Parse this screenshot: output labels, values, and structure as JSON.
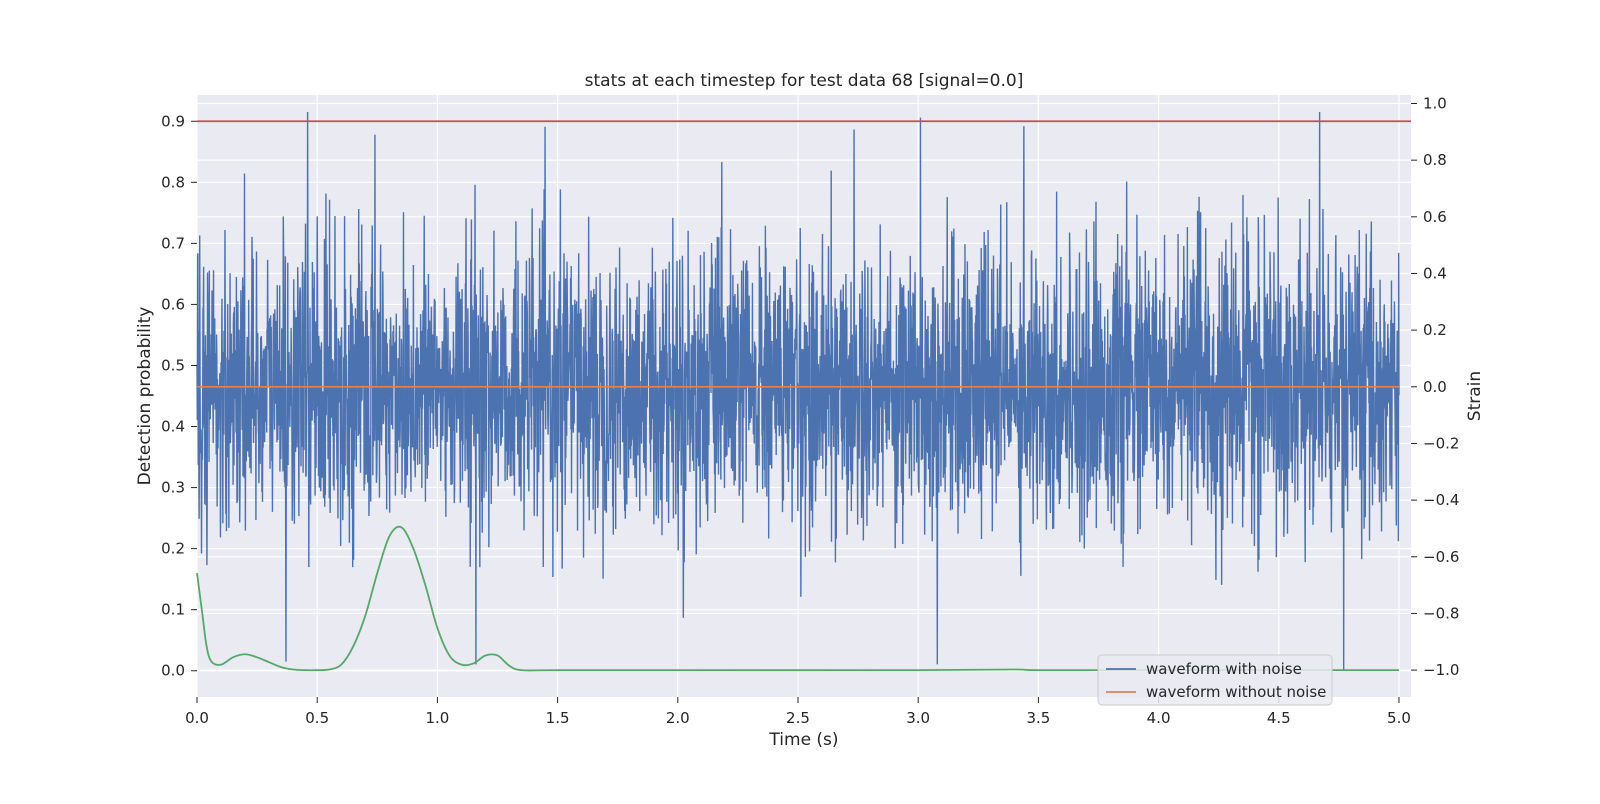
{
  "chart_data": {
    "type": "line",
    "title": "stats at each timestep for test data 68 [signal=0.0]",
    "xlabel": "Time (s)",
    "ylabel": "Detection probability",
    "y2label": "Strain",
    "xlim": [
      0.0,
      5.05
    ],
    "ylim": [
      -0.043,
      0.943
    ],
    "y2lim": [
      -1.095,
      1.03
    ],
    "xticks": [
      "0.0",
      "0.5",
      "1.0",
      "1.5",
      "2.0",
      "2.5",
      "3.0",
      "3.5",
      "4.0",
      "4.5",
      "5.0"
    ],
    "yticks": [
      "0.0",
      "0.1",
      "0.2",
      "0.3",
      "0.4",
      "0.5",
      "0.6",
      "0.7",
      "0.8",
      "0.9"
    ],
    "y2ticks": [
      "−1.0",
      "−0.8",
      "−0.6",
      "−0.4",
      "−0.2",
      "0.0",
      "0.2",
      "0.4",
      "0.6",
      "0.8",
      "1.0"
    ],
    "grid": true,
    "legend_position": "lower-right",
    "series": [
      {
        "name": "waveform with noise",
        "axis": "right",
        "color": "#4c72b0",
        "description_values": "dense noise strain series, 0.0–5.0 s, roughly ±0.3 typical amplitude",
        "peaks": [
          {
            "x": 0.46,
            "y": 0.97
          },
          {
            "x": 0.74,
            "y": 0.89
          },
          {
            "x": 3.01,
            "y": 0.95
          },
          {
            "x": 3.44,
            "y": 0.92
          },
          {
            "x": 4.67,
            "y": 0.97
          }
        ],
        "troughs": [
          {
            "x": 0.37,
            "y": -0.97
          },
          {
            "x": 1.16,
            "y": -0.98
          },
          {
            "x": 3.08,
            "y": -0.98
          },
          {
            "x": 4.77,
            "y": -1.0
          }
        ]
      },
      {
        "name": "waveform without noise",
        "axis": "right",
        "color": "#dd8452",
        "x": [
          0.0,
          5.0
        ],
        "y": [
          0.0,
          0.0
        ]
      },
      {
        "name": "",
        "axis": "left",
        "color": "#55a868",
        "x": [
          0.0,
          0.02,
          0.04,
          0.06,
          0.1,
          0.15,
          0.2,
          0.25,
          0.3,
          0.35,
          0.4,
          0.45,
          0.5,
          0.55,
          0.6,
          0.65,
          0.7,
          0.75,
          0.8,
          0.85,
          0.9,
          0.95,
          1.0,
          1.05,
          1.1,
          1.15,
          1.2,
          1.25,
          1.3,
          1.35,
          1.5,
          2.0,
          3.0,
          3.4,
          3.5,
          4.0,
          5.0
        ],
        "y": [
          0.16,
          0.1,
          0.04,
          0.015,
          0.01,
          0.022,
          0.027,
          0.022,
          0.014,
          0.006,
          0.002,
          0.001,
          0.001,
          0.002,
          0.01,
          0.04,
          0.09,
          0.16,
          0.22,
          0.235,
          0.2,
          0.14,
          0.07,
          0.025,
          0.01,
          0.012,
          0.025,
          0.025,
          0.008,
          0.001,
          0.001,
          0.001,
          0.001,
          0.002,
          0.001,
          0.001,
          0.001
        ]
      },
      {
        "name": "",
        "axis": "left",
        "color": "#c44e52",
        "x": [
          0.0,
          5.05
        ],
        "y": [
          0.9,
          0.9
        ]
      }
    ]
  },
  "legend": {
    "items": [
      {
        "label": "waveform with noise",
        "color": "#4c72b0"
      },
      {
        "label": "waveform without noise",
        "color": "#dd8452"
      }
    ]
  },
  "colors": {
    "plot_background": "#eaeaf2",
    "grid": "#ffffff"
  }
}
